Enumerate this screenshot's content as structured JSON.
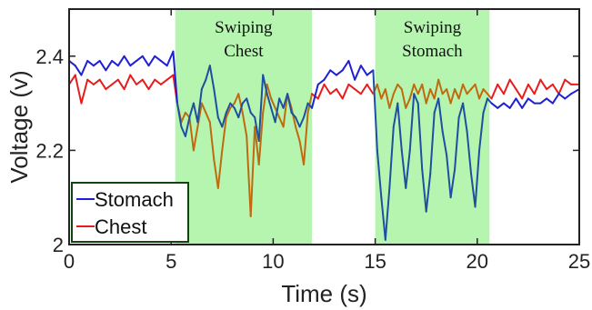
{
  "chart_data": {
    "type": "line",
    "title": "",
    "xlabel": "Time (s)",
    "ylabel": "Voltage (v)",
    "xlim": [
      0,
      25
    ],
    "ylim": [
      2.0,
      2.5
    ],
    "xticks": [
      0,
      5,
      10,
      15,
      20,
      25
    ],
    "xtick_labels": [
      "0",
      "5",
      "10",
      "15",
      "20",
      "25"
    ],
    "yticks": [
      2.0,
      2.2,
      2.4
    ],
    "ytick_labels": [
      "2",
      "2.2",
      "2.4"
    ],
    "grid": false,
    "legend_position": "bottom-left",
    "shaded_regions": [
      {
        "x0": 5.2,
        "x1": 11.9,
        "label_lines": [
          "Swiping",
          "Chest"
        ],
        "color": "#b6f5b0"
      },
      {
        "x0": 15.0,
        "x1": 20.6,
        "label_lines": [
          "Swiping",
          "Stomach"
        ],
        "color": "#b6f5b0"
      }
    ],
    "series": [
      {
        "name": "Stomach",
        "color": "#1f1fd6",
        "overlap_color": "#1f4fa0",
        "x": [
          0,
          0.3,
          0.6,
          0.9,
          1.2,
          1.5,
          1.8,
          2.1,
          2.4,
          2.7,
          3.0,
          3.3,
          3.6,
          3.9,
          4.2,
          4.5,
          4.8,
          5.1,
          5.3,
          5.5,
          5.7,
          5.9,
          6.1,
          6.3,
          6.5,
          6.7,
          6.9,
          7.1,
          7.3,
          7.5,
          7.7,
          7.9,
          8.1,
          8.3,
          8.5,
          8.7,
          8.9,
          9.1,
          9.3,
          9.5,
          9.7,
          9.9,
          10.1,
          10.3,
          10.5,
          10.7,
          10.9,
          11.1,
          11.3,
          11.5,
          11.7,
          11.9,
          12.2,
          12.5,
          12.8,
          13.1,
          13.4,
          13.7,
          14.0,
          14.3,
          14.6,
          14.9,
          15.1,
          15.3,
          15.5,
          15.7,
          15.9,
          16.1,
          16.3,
          16.5,
          16.7,
          16.9,
          17.1,
          17.3,
          17.5,
          17.7,
          17.9,
          18.1,
          18.3,
          18.5,
          18.7,
          18.9,
          19.1,
          19.3,
          19.5,
          19.7,
          19.9,
          20.1,
          20.3,
          20.5,
          20.7,
          21.0,
          21.3,
          21.6,
          21.9,
          22.2,
          22.5,
          22.8,
          23.1,
          23.4,
          23.7,
          24.0,
          24.3,
          24.6,
          25.0
        ],
        "y": [
          2.39,
          2.38,
          2.36,
          2.39,
          2.38,
          2.39,
          2.37,
          2.39,
          2.38,
          2.4,
          2.38,
          2.39,
          2.4,
          2.38,
          2.4,
          2.39,
          2.38,
          2.41,
          2.3,
          2.25,
          2.23,
          2.27,
          2.3,
          2.26,
          2.33,
          2.35,
          2.38,
          2.33,
          2.27,
          2.25,
          2.28,
          2.3,
          2.29,
          2.27,
          2.3,
          2.31,
          2.28,
          2.27,
          2.22,
          2.36,
          2.32,
          2.29,
          2.26,
          2.31,
          2.29,
          2.32,
          2.28,
          2.27,
          2.25,
          2.27,
          2.3,
          2.29,
          2.34,
          2.35,
          2.37,
          2.36,
          2.37,
          2.39,
          2.35,
          2.38,
          2.36,
          2.37,
          2.2,
          2.1,
          2.01,
          2.12,
          2.25,
          2.3,
          2.2,
          2.12,
          2.2,
          2.32,
          2.3,
          2.16,
          2.07,
          2.15,
          2.28,
          2.31,
          2.24,
          2.19,
          2.1,
          2.16,
          2.27,
          2.3,
          2.24,
          2.15,
          2.08,
          2.2,
          2.28,
          2.31,
          2.3,
          2.29,
          2.3,
          2.29,
          2.31,
          2.29,
          2.31,
          2.3,
          2.3,
          2.31,
          2.3,
          2.32,
          2.31,
          2.32,
          2.33
        ]
      },
      {
        "name": "Chest",
        "color": "#e81c1c",
        "overlap_color": "#c06a10",
        "x": [
          0,
          0.3,
          0.6,
          0.9,
          1.2,
          1.5,
          1.8,
          2.1,
          2.4,
          2.7,
          3.0,
          3.3,
          3.6,
          3.9,
          4.2,
          4.5,
          4.8,
          5.1,
          5.3,
          5.5,
          5.7,
          5.9,
          6.1,
          6.3,
          6.5,
          6.7,
          6.9,
          7.1,
          7.3,
          7.5,
          7.7,
          7.9,
          8.1,
          8.3,
          8.5,
          8.7,
          8.9,
          9.1,
          9.3,
          9.5,
          9.7,
          9.9,
          10.1,
          10.3,
          10.5,
          10.7,
          10.9,
          11.1,
          11.3,
          11.5,
          11.7,
          11.9,
          12.2,
          12.5,
          12.8,
          13.1,
          13.4,
          13.7,
          14.0,
          14.3,
          14.6,
          14.9,
          15.1,
          15.3,
          15.5,
          15.7,
          15.9,
          16.1,
          16.3,
          16.5,
          16.7,
          16.9,
          17.1,
          17.3,
          17.5,
          17.7,
          17.9,
          18.1,
          18.3,
          18.5,
          18.7,
          18.9,
          19.1,
          19.3,
          19.5,
          19.7,
          19.9,
          20.1,
          20.3,
          20.5,
          20.7,
          21.0,
          21.3,
          21.6,
          21.9,
          22.2,
          22.5,
          22.8,
          23.1,
          23.4,
          23.7,
          24.0,
          24.3,
          24.6,
          25.0
        ],
        "y": [
          2.34,
          2.36,
          2.3,
          2.35,
          2.34,
          2.35,
          2.33,
          2.34,
          2.35,
          2.33,
          2.36,
          2.34,
          2.35,
          2.33,
          2.35,
          2.34,
          2.35,
          2.36,
          2.3,
          2.26,
          2.28,
          2.27,
          2.2,
          2.25,
          2.3,
          2.28,
          2.26,
          2.18,
          2.12,
          2.2,
          2.27,
          2.29,
          2.3,
          2.32,
          2.28,
          2.23,
          2.06,
          2.25,
          2.17,
          2.28,
          2.34,
          2.31,
          2.29,
          2.27,
          2.25,
          2.32,
          2.29,
          2.25,
          2.22,
          2.17,
          2.28,
          2.32,
          2.31,
          2.34,
          2.32,
          2.33,
          2.31,
          2.34,
          2.33,
          2.32,
          2.34,
          2.32,
          2.34,
          2.31,
          2.33,
          2.29,
          2.32,
          2.34,
          2.33,
          2.29,
          2.31,
          2.34,
          2.32,
          2.34,
          2.3,
          2.33,
          2.31,
          2.35,
          2.32,
          2.33,
          2.3,
          2.33,
          2.31,
          2.34,
          2.32,
          2.33,
          2.34,
          2.31,
          2.33,
          2.32,
          2.31,
          2.34,
          2.32,
          2.35,
          2.33,
          2.31,
          2.34,
          2.32,
          2.35,
          2.33,
          2.34,
          2.32,
          2.35,
          2.34,
          2.34
        ]
      }
    ]
  }
}
